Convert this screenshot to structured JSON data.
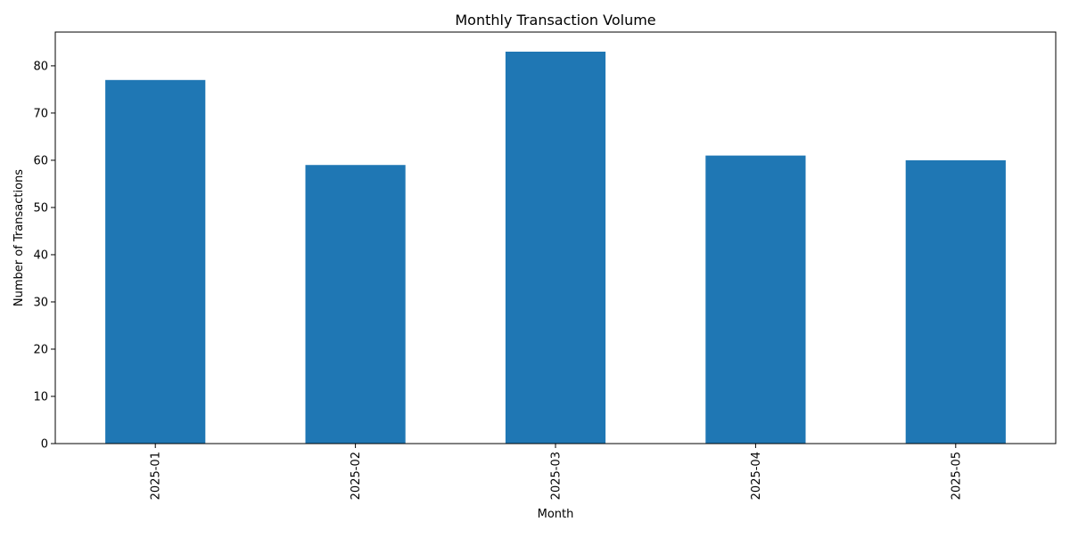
{
  "chart_data": {
    "type": "bar",
    "title": "Monthly Transaction Volume",
    "xlabel": "Month",
    "ylabel": "Number of Transactions",
    "categories": [
      "2025-01",
      "2025-02",
      "2025-03",
      "2025-04",
      "2025-05"
    ],
    "values": [
      77,
      59,
      83,
      61,
      60
    ],
    "ylim": [
      0,
      87.15
    ],
    "yticks": [
      0,
      10,
      20,
      30,
      40,
      50,
      60,
      70,
      80
    ],
    "xtick_rotation": "vertical",
    "grid": false,
    "legend": "none",
    "bar_color": "#1f77b4",
    "axis_color": "#000000",
    "background": "#ffffff"
  }
}
